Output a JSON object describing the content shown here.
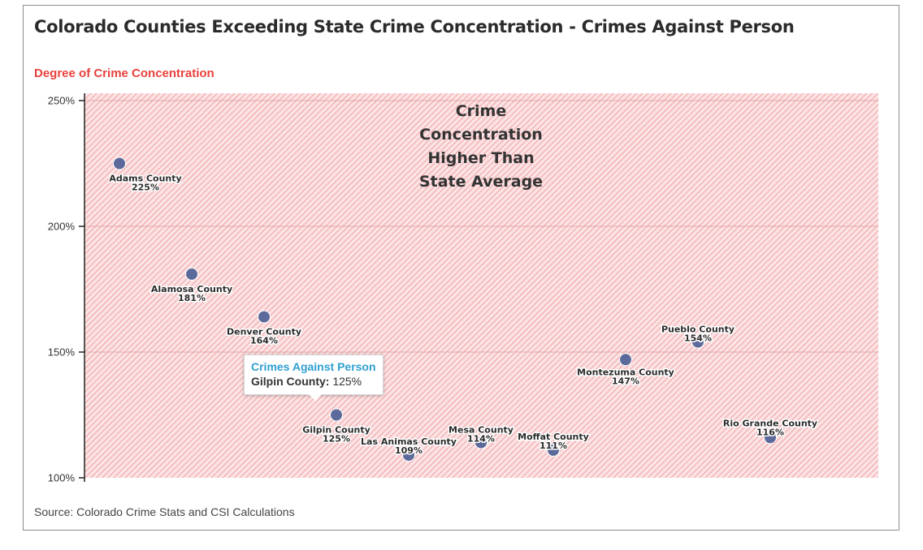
{
  "chart_data": {
    "type": "scatter",
    "title": "Colorado Counties Exceeding State Crime Concentration - Crimes Against Person",
    "ylabel": "Degree of Crime Concentration",
    "source": "Source: Colorado Crime Stats and CSI Calculations",
    "ylim": [
      100,
      250
    ],
    "y_ticks": [
      "100%",
      "150%",
      "200%",
      "250%"
    ],
    "y_tick_values": [
      100,
      150,
      200,
      250
    ],
    "shaded_region_label": [
      "Crime",
      "Concentration",
      "Higher Than",
      "State Average"
    ],
    "grid": true,
    "points": [
      {
        "name": "Adams County",
        "value": 225,
        "label": "225%"
      },
      {
        "name": "Alamosa County",
        "value": 181,
        "label": "181%"
      },
      {
        "name": "Denver County",
        "value": 164,
        "label": "164%"
      },
      {
        "name": "Gilpin County",
        "value": 125,
        "label": "125%"
      },
      {
        "name": "Las Animas County",
        "value": 109,
        "label": "109%"
      },
      {
        "name": "Mesa County",
        "value": 114,
        "label": "114%"
      },
      {
        "name": "Moffat County",
        "value": 111,
        "label": "111%"
      },
      {
        "name": "Montezuma County",
        "value": 147,
        "label": "147%"
      },
      {
        "name": "Pueblo County",
        "value": 154,
        "label": "154%"
      },
      {
        "name": "Rio Grande County",
        "value": 116,
        "label": "116%"
      }
    ],
    "colors": {
      "marker": "#5b6a9a",
      "region": "#f4a3a6",
      "title": "#2b2b2b",
      "subtitle": "#e8413c"
    }
  },
  "tooltip": {
    "series": "Crimes Against Person",
    "name": "Gilpin County:",
    "value": "125%"
  }
}
